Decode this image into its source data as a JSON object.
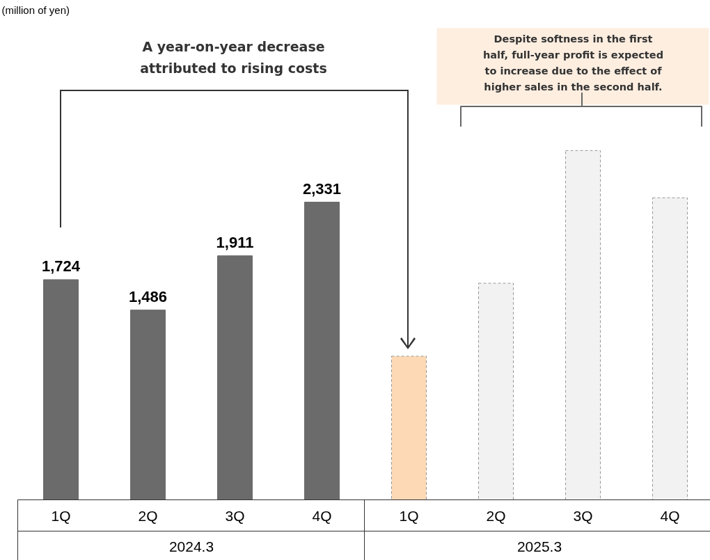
{
  "chart_data": {
    "type": "bar",
    "categories": [
      "1Q",
      "2Q",
      "3Q",
      "4Q",
      "1Q",
      "2Q",
      "3Q",
      "4Q"
    ],
    "series": [
      {
        "colors": [
          "#6b6b6b",
          "#6b6b6b",
          "#6b6b6b",
          "#6b6b6b",
          null,
          null,
          null,
          null
        ],
        "values": [
          1724,
          1486,
          1911,
          2331,
          null,
          null,
          null,
          null
        ],
        "value_labels": [
          "1,724",
          "1,486",
          "1,911",
          "2,331",
          null,
          null,
          null,
          null
        ]
      },
      {
        "line_style": "dashed",
        "colors": [
          null,
          null,
          null,
          null,
          "#fdd9b5",
          "#f2f2f2",
          "#f2f2f2",
          "#f2f2f2"
        ],
        "values": [
          null,
          null,
          null,
          null,
          1125,
          1696,
          2735,
          2365
        ]
      }
    ],
    "grid": false,
    "annotations": [
      "(million of yen)",
      "A year-on-year decrease\nattributed to rising costs",
      "Despite softness in the first\nhalf, full-year profit is expected\nto increase due to the effect of\nhigher sales in the second half.",
      "2024.3",
      "2025.3"
    ]
  }
}
